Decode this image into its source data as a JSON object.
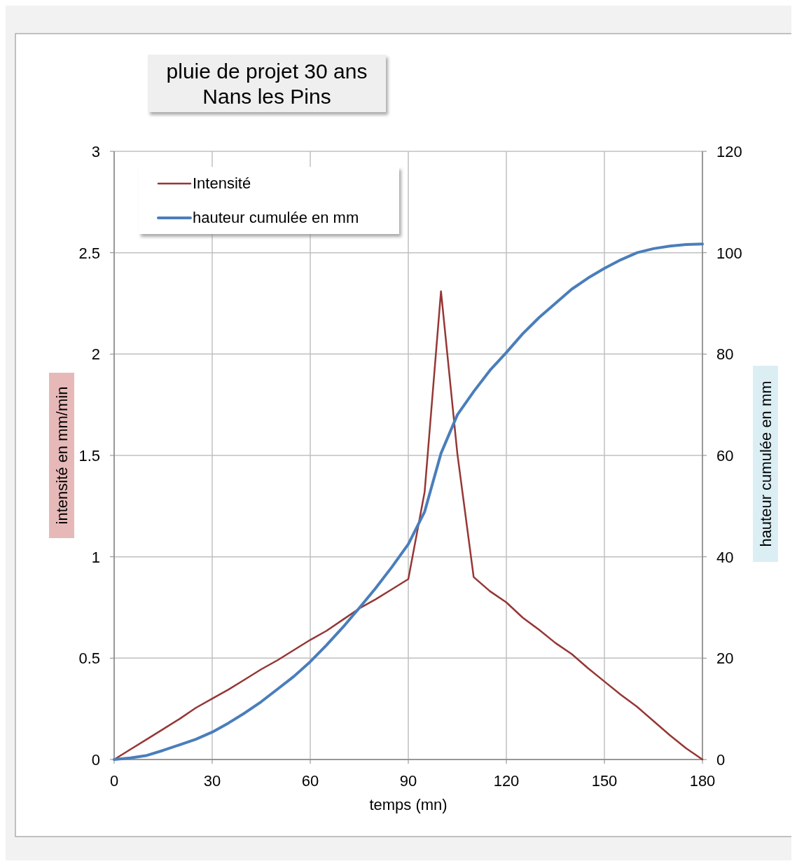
{
  "chart_data": {
    "type": "line",
    "title": "pluie de projet 30 ans",
    "subtitle": "Nans les Pins",
    "xlabel": "temps (mn)",
    "ylabel": "intensité en mm/min",
    "y2label": "hauteur cumulée en mm",
    "x": [
      0,
      5,
      10,
      15,
      20,
      25,
      30,
      35,
      40,
      45,
      50,
      55,
      60,
      65,
      70,
      75,
      80,
      85,
      90,
      95,
      100,
      105,
      110,
      115,
      120,
      125,
      130,
      135,
      140,
      145,
      150,
      155,
      160,
      165,
      170,
      175,
      180
    ],
    "series": [
      {
        "name": "Intensité",
        "color": "#953735",
        "values": [
          0,
          0.05,
          0.1,
          0.15,
          0.2,
          0.255,
          0.3,
          0.345,
          0.395,
          0.445,
          0.49,
          0.54,
          0.59,
          0.635,
          0.69,
          0.745,
          0.79,
          0.84,
          0.89,
          1.32,
          2.31,
          1.51,
          0.9,
          0.83,
          0.775,
          0.7,
          0.64,
          0.575,
          0.52,
          0.45,
          0.385,
          0.32,
          0.26,
          0.19,
          0.12,
          0.055,
          0
        ]
      },
      {
        "name": "hauteur cumulée en mm",
        "color": "#4a7ebb",
        "axis": "y2",
        "values": [
          0,
          0.3,
          0.8,
          1.8,
          2.9,
          4,
          5.4,
          7.2,
          9.2,
          11.4,
          13.9,
          16.4,
          19.3,
          22.6,
          26.1,
          29.9,
          33.8,
          38,
          42.5,
          48.9,
          60.4,
          68,
          72.6,
          76.8,
          80.3,
          84,
          87.2,
          90,
          92.8,
          95,
          96.9,
          98.6,
          100,
          100.8,
          101.3,
          101.6,
          101.7
        ]
      }
    ],
    "xlim": [
      0,
      180
    ],
    "xticks": [
      0,
      30,
      60,
      90,
      120,
      150,
      180
    ],
    "ylim": [
      0,
      3
    ],
    "yticks": [
      0,
      0.5,
      1,
      1.5,
      2,
      2.5,
      3
    ],
    "y2lim": [
      0,
      120
    ],
    "y2ticks": [
      0,
      20,
      40,
      60,
      80,
      100,
      120
    ],
    "grid": true,
    "legend": "top left",
    "line_style": "solid"
  }
}
